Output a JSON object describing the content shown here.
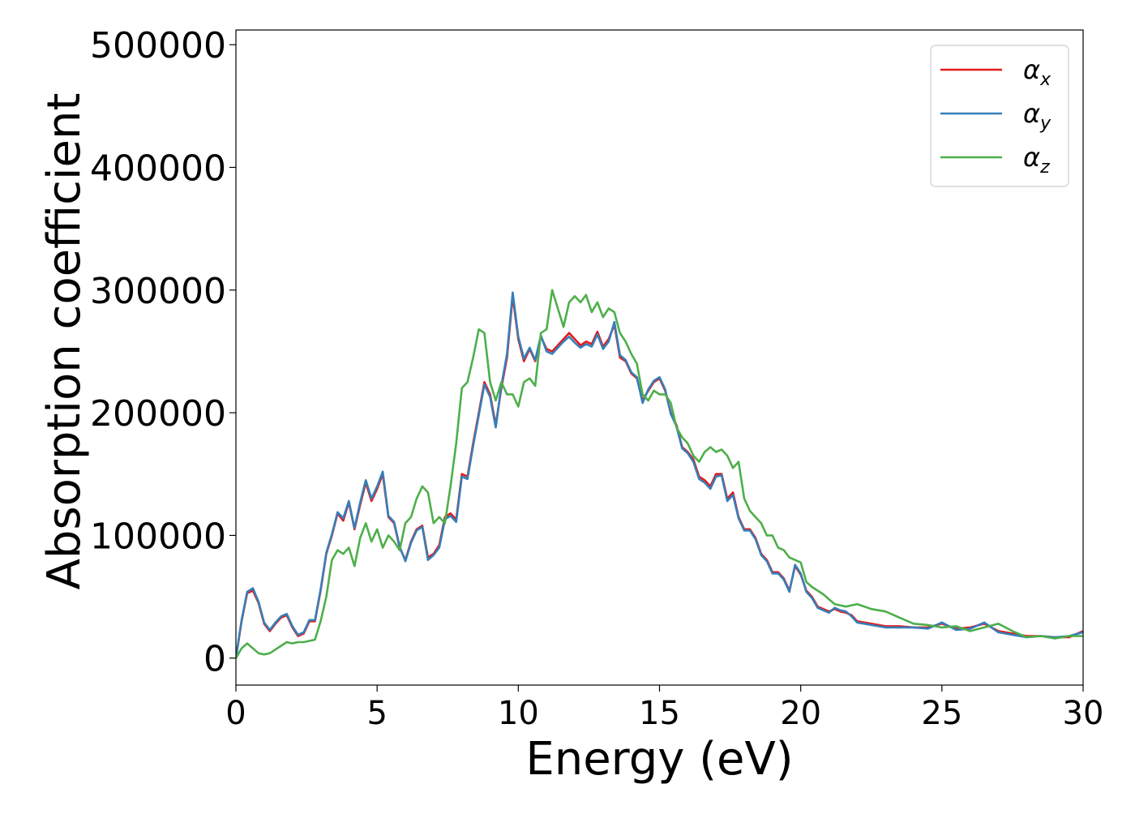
{
  "chart_data": {
    "type": "line",
    "title": "",
    "xlabel": "Energy (eV)",
    "ylabel": "Absorption coefficient",
    "xlim": [
      0,
      30
    ],
    "ylim": [
      -22000,
      512000
    ],
    "xticks": [
      0,
      5,
      10,
      15,
      20,
      25,
      30
    ],
    "xtick_labels": [
      "0",
      "5",
      "10",
      "15",
      "20",
      "25",
      "30"
    ],
    "yticks": [
      0,
      100000,
      200000,
      300000,
      400000,
      500000
    ],
    "ytick_labels": [
      "0",
      "100000",
      "200000",
      "300000",
      "400000",
      "500000"
    ],
    "grid": false,
    "legend_position": "top-right",
    "series": [
      {
        "name": "α",
        "subscript": "x",
        "color": "#e41a1c",
        "x": [
          0,
          0.2,
          0.4,
          0.6,
          0.8,
          1.0,
          1.2,
          1.4,
          1.6,
          1.8,
          2.0,
          2.2,
          2.4,
          2.6,
          2.8,
          3.0,
          3.2,
          3.4,
          3.6,
          3.8,
          4.0,
          4.2,
          4.4,
          4.6,
          4.8,
          5.0,
          5.2,
          5.4,
          5.6,
          5.8,
          6.0,
          6.2,
          6.4,
          6.6,
          6.8,
          7.0,
          7.2,
          7.4,
          7.6,
          7.8,
          8.0,
          8.2,
          8.4,
          8.6,
          8.8,
          9.0,
          9.2,
          9.4,
          9.6,
          9.8,
          10.0,
          10.2,
          10.4,
          10.6,
          10.8,
          11.0,
          11.2,
          11.4,
          11.6,
          11.8,
          12.0,
          12.2,
          12.4,
          12.6,
          12.8,
          13.0,
          13.2,
          13.4,
          13.6,
          13.8,
          14.0,
          14.2,
          14.4,
          14.6,
          14.8,
          15.0,
          15.2,
          15.4,
          15.6,
          15.8,
          16.0,
          16.2,
          16.4,
          16.6,
          16.8,
          17.0,
          17.2,
          17.4,
          17.6,
          17.8,
          18.0,
          18.2,
          18.4,
          18.6,
          18.8,
          19.0,
          19.2,
          19.4,
          19.6,
          19.8,
          20.0,
          20.2,
          20.4,
          20.6,
          20.8,
          21.0,
          21.2,
          21.4,
          21.6,
          21.8,
          22.0,
          22.5,
          23.0,
          23.5,
          24.0,
          24.5,
          25.0,
          25.5,
          26.0,
          26.5,
          27.0,
          27.5,
          28.0,
          28.5,
          29.0,
          29.5,
          30.0
        ],
        "values": [
          0,
          30000,
          53000,
          55000,
          45000,
          28000,
          22000,
          28000,
          33000,
          35000,
          25000,
          18000,
          20000,
          30000,
          30000,
          55000,
          85000,
          100000,
          118000,
          112000,
          127000,
          105000,
          125000,
          143000,
          128000,
          138000,
          150000,
          115000,
          110000,
          90000,
          80000,
          95000,
          105000,
          108000,
          82000,
          85000,
          92000,
          115000,
          118000,
          113000,
          150000,
          148000,
          175000,
          200000,
          225000,
          215000,
          190000,
          220000,
          245000,
          295000,
          260000,
          242000,
          252000,
          242000,
          262000,
          252000,
          250000,
          255000,
          260000,
          265000,
          260000,
          255000,
          258000,
          256000,
          266000,
          254000,
          260000,
          272000,
          245000,
          242000,
          232000,
          228000,
          210000,
          218000,
          225000,
          228000,
          218000,
          200000,
          190000,
          172000,
          168000,
          162000,
          148000,
          145000,
          140000,
          150000,
          150000,
          130000,
          135000,
          115000,
          105000,
          105000,
          98000,
          85000,
          80000,
          70000,
          70000,
          65000,
          55000,
          75000,
          68000,
          55000,
          50000,
          42000,
          40000,
          38000,
          40000,
          38000,
          37000,
          35000,
          30000,
          28000,
          26000,
          26000,
          25000,
          25000,
          28000,
          24000,
          25000,
          28000,
          22000,
          20000,
          18000,
          18000,
          17000,
          17000,
          22000
        ]
      },
      {
        "name": "α",
        "subscript": "y",
        "color": "#377eb8",
        "x": [
          0,
          0.2,
          0.4,
          0.6,
          0.8,
          1.0,
          1.2,
          1.4,
          1.6,
          1.8,
          2.0,
          2.2,
          2.4,
          2.6,
          2.8,
          3.0,
          3.2,
          3.4,
          3.6,
          3.8,
          4.0,
          4.2,
          4.4,
          4.6,
          4.8,
          5.0,
          5.2,
          5.4,
          5.6,
          5.8,
          6.0,
          6.2,
          6.4,
          6.6,
          6.8,
          7.0,
          7.2,
          7.4,
          7.6,
          7.8,
          8.0,
          8.2,
          8.4,
          8.6,
          8.8,
          9.0,
          9.2,
          9.4,
          9.6,
          9.8,
          10.0,
          10.2,
          10.4,
          10.6,
          10.8,
          11.0,
          11.2,
          11.4,
          11.6,
          11.8,
          12.0,
          12.2,
          12.4,
          12.6,
          12.8,
          13.0,
          13.2,
          13.4,
          13.6,
          13.8,
          14.0,
          14.2,
          14.4,
          14.6,
          14.8,
          15.0,
          15.2,
          15.4,
          15.6,
          15.8,
          16.0,
          16.2,
          16.4,
          16.6,
          16.8,
          17.0,
          17.2,
          17.4,
          17.6,
          17.8,
          18.0,
          18.2,
          18.4,
          18.6,
          18.8,
          19.0,
          19.2,
          19.4,
          19.6,
          19.8,
          20.0,
          20.2,
          20.4,
          20.6,
          20.8,
          21.0,
          21.2,
          21.4,
          21.6,
          21.8,
          22.0,
          22.5,
          23.0,
          23.5,
          24.0,
          24.5,
          25.0,
          25.5,
          26.0,
          26.5,
          27.0,
          27.5,
          28.0,
          28.5,
          29.0,
          29.5,
          30.0
        ],
        "values": [
          0,
          31000,
          54000,
          57000,
          46000,
          29000,
          23000,
          29000,
          34000,
          36000,
          26000,
          19000,
          21000,
          31000,
          31000,
          56000,
          86000,
          101000,
          119000,
          114000,
          128000,
          106000,
          127000,
          145000,
          130000,
          140000,
          152000,
          116000,
          111000,
          91000,
          79000,
          94000,
          104000,
          107000,
          80000,
          84000,
          90000,
          113000,
          116000,
          111000,
          148000,
          146000,
          173000,
          198000,
          223000,
          213000,
          188000,
          222000,
          248000,
          298000,
          262000,
          244000,
          253000,
          243000,
          263000,
          250000,
          248000,
          253000,
          258000,
          262000,
          257000,
          253000,
          256000,
          254000,
          264000,
          252000,
          258000,
          274000,
          247000,
          243000,
          233000,
          229000,
          208000,
          219000,
          226000,
          229000,
          219000,
          199000,
          189000,
          171000,
          167000,
          160000,
          146000,
          143000,
          138000,
          148000,
          149000,
          128000,
          133000,
          114000,
          104000,
          104000,
          97000,
          84000,
          79000,
          69000,
          69000,
          64000,
          54000,
          76000,
          69000,
          54000,
          49000,
          41000,
          39000,
          37000,
          41000,
          39000,
          38000,
          34000,
          29000,
          27000,
          25000,
          25000,
          25000,
          24000,
          29000,
          23000,
          24000,
          29000,
          21000,
          19000,
          17000,
          18000,
          17000,
          18000,
          21000
        ]
      },
      {
        "name": "α",
        "subscript": "z",
        "color": "#4daf4a",
        "x": [
          0,
          0.2,
          0.4,
          0.6,
          0.8,
          1.0,
          1.2,
          1.4,
          1.6,
          1.8,
          2.0,
          2.2,
          2.4,
          2.6,
          2.8,
          3.0,
          3.2,
          3.4,
          3.6,
          3.8,
          4.0,
          4.2,
          4.4,
          4.6,
          4.8,
          5.0,
          5.2,
          5.4,
          5.6,
          5.8,
          6.0,
          6.2,
          6.4,
          6.6,
          6.8,
          7.0,
          7.2,
          7.4,
          7.6,
          7.8,
          8.0,
          8.2,
          8.4,
          8.6,
          8.8,
          9.0,
          9.2,
          9.4,
          9.6,
          9.8,
          10.0,
          10.2,
          10.4,
          10.6,
          10.8,
          11.0,
          11.2,
          11.4,
          11.6,
          11.8,
          12.0,
          12.2,
          12.4,
          12.6,
          12.8,
          13.0,
          13.2,
          13.4,
          13.6,
          13.8,
          14.0,
          14.2,
          14.4,
          14.6,
          14.8,
          15.0,
          15.2,
          15.4,
          15.6,
          15.8,
          16.0,
          16.2,
          16.4,
          16.6,
          16.8,
          17.0,
          17.2,
          17.4,
          17.6,
          17.8,
          18.0,
          18.2,
          18.4,
          18.6,
          18.8,
          19.0,
          19.2,
          19.4,
          19.6,
          19.8,
          20.0,
          20.2,
          20.4,
          20.6,
          20.8,
          21.0,
          21.2,
          21.4,
          21.6,
          21.8,
          22.0,
          22.5,
          23.0,
          23.5,
          24.0,
          24.5,
          25.0,
          25.5,
          26.0,
          26.5,
          27.0,
          27.5,
          28.0,
          28.5,
          29.0,
          29.5,
          30.0
        ],
        "values": [
          0,
          8000,
          12000,
          8000,
          4000,
          3000,
          4000,
          7000,
          10000,
          13000,
          12000,
          13000,
          13000,
          14000,
          15000,
          30000,
          50000,
          80000,
          88000,
          85000,
          90000,
          75000,
          98000,
          110000,
          95000,
          105000,
          90000,
          100000,
          95000,
          88000,
          110000,
          115000,
          130000,
          140000,
          135000,
          110000,
          115000,
          110000,
          140000,
          175000,
          220000,
          225000,
          245000,
          268000,
          265000,
          225000,
          210000,
          225000,
          215000,
          215000,
          205000,
          225000,
          228000,
          222000,
          265000,
          268000,
          300000,
          285000,
          270000,
          290000,
          295000,
          290000,
          296000,
          282000,
          290000,
          278000,
          285000,
          282000,
          265000,
          258000,
          248000,
          240000,
          215000,
          210000,
          218000,
          215000,
          215000,
          208000,
          188000,
          180000,
          175000,
          165000,
          160000,
          168000,
          172000,
          168000,
          170000,
          165000,
          155000,
          160000,
          130000,
          120000,
          115000,
          110000,
          100000,
          100000,
          90000,
          88000,
          82000,
          80000,
          78000,
          62000,
          58000,
          55000,
          52000,
          48000,
          44000,
          43000,
          42000,
          43000,
          44000,
          40000,
          38000,
          33000,
          28000,
          27000,
          25000,
          26000,
          22000,
          25000,
          28000,
          22000,
          17000,
          18000,
          16000,
          18000,
          18000
        ]
      }
    ]
  }
}
